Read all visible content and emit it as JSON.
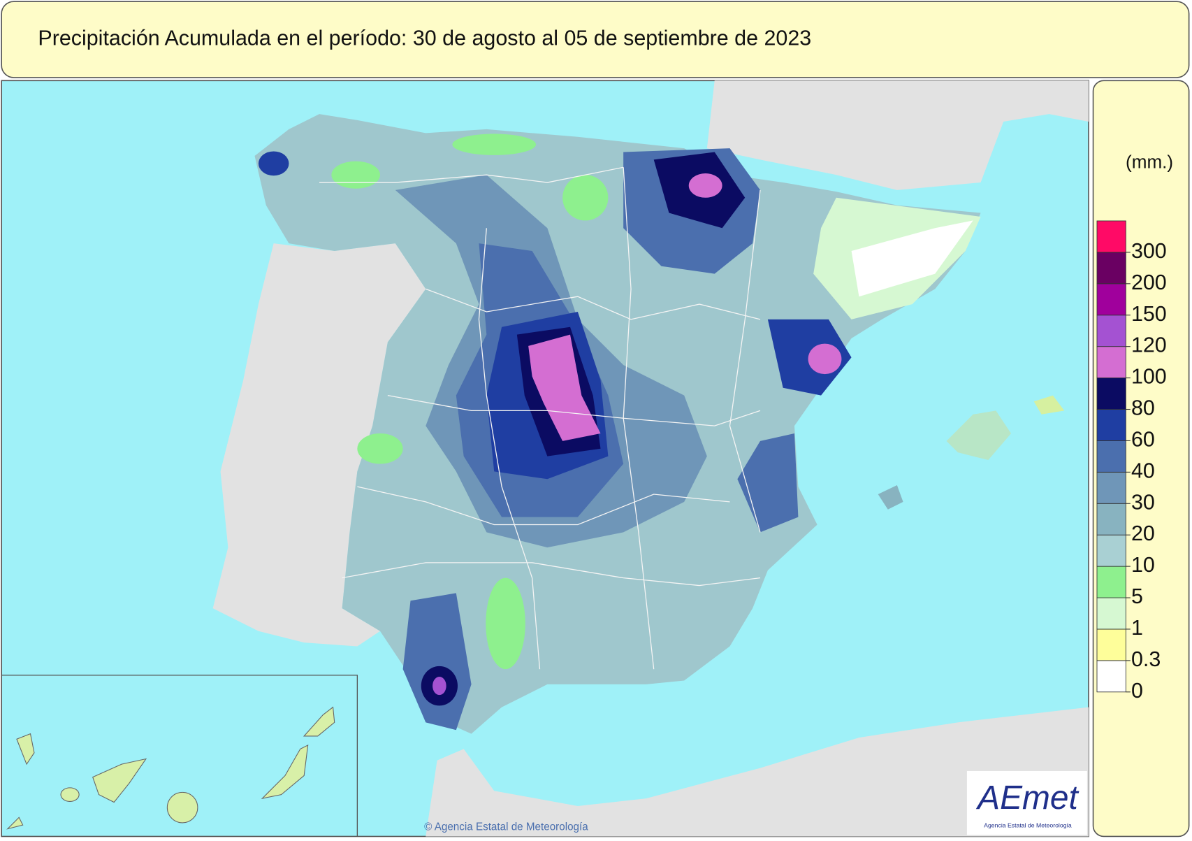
{
  "header": {
    "title": "Precipitación Acumulada en el período: 30  de agosto  al 05  de septiembre de  2023"
  },
  "legend": {
    "unit": "(mm.)",
    "thresholds": [
      0,
      0.3,
      1,
      5,
      10,
      20,
      30,
      40,
      60,
      80,
      100,
      120,
      150,
      200,
      300
    ],
    "colors": [
      "#ffffff",
      "#fefe9a",
      "#d6f8d2",
      "#8ef08e",
      "#a9d0d3",
      "#88b3c0",
      "#6f96b8",
      "#4b6fae",
      "#1f3ea2",
      "#0b0b62",
      "#d46ed2",
      "#a452d2",
      "#a0009c",
      "#6a0062",
      "#ff0a66"
    ]
  },
  "footer": {
    "credit": "© Agencia Estatal de Meteorología"
  },
  "logo": {
    "text": "AEmet",
    "subtitle": "Agencia Estatal de Meteorología"
  }
}
